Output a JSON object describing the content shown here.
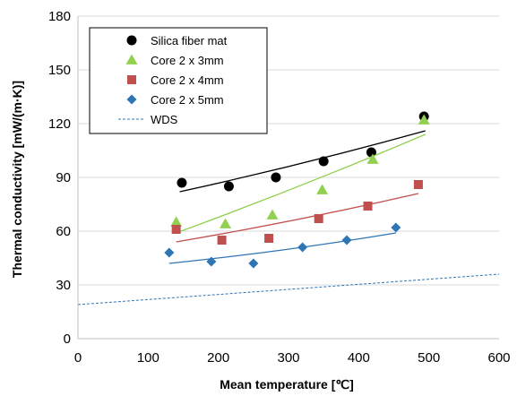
{
  "chart_data": {
    "type": "scatter",
    "title": "",
    "xlabel": "Mean temperature [℃]",
    "ylabel": "Thermal conductivity [mW/(m·K)]",
    "xlim": [
      0,
      600
    ],
    "ylim": [
      0,
      180
    ],
    "xticks": [
      "0",
      "100",
      "200",
      "300",
      "400",
      "500",
      "600"
    ],
    "yticks": [
      "0",
      "30",
      "60",
      "90",
      "120",
      "150",
      "180"
    ],
    "grid": "horizontal",
    "legend_position": "top-left",
    "series": [
      {
        "name": "Silica fiber mat",
        "marker": "circle",
        "color": "#000000",
        "points": [
          [
            148,
            87
          ],
          [
            215,
            85
          ],
          [
            282,
            90
          ],
          [
            350,
            99
          ],
          [
            418,
            104
          ],
          [
            493,
            124
          ]
        ],
        "trend": [
          [
            145,
            82
          ],
          [
            495,
            116
          ]
        ]
      },
      {
        "name": "Core 2 x 3mm",
        "marker": "triangle",
        "color": "#92d050",
        "points": [
          [
            140,
            65
          ],
          [
            210,
            64
          ],
          [
            277,
            69
          ],
          [
            348,
            83
          ],
          [
            420,
            100
          ],
          [
            493,
            122
          ]
        ],
        "trend": [
          [
            140,
            59
          ],
          [
            495,
            114
          ]
        ]
      },
      {
        "name": "Core 2 x 4mm",
        "marker": "square",
        "color": "#c0504d",
        "points": [
          [
            140,
            61
          ],
          [
            205,
            55
          ],
          [
            272,
            56
          ],
          [
            343,
            67
          ],
          [
            413,
            74
          ],
          [
            485,
            86
          ]
        ],
        "trend": [
          [
            140,
            54
          ],
          [
            485,
            81
          ]
        ]
      },
      {
        "name": "Core 2 x 5mm",
        "marker": "diamond",
        "color": "#2e75b6",
        "points": [
          [
            130,
            48
          ],
          [
            190,
            43
          ],
          [
            250,
            42
          ],
          [
            320,
            51
          ],
          [
            383,
            55
          ],
          [
            453,
            62
          ]
        ],
        "trend": [
          [
            130,
            42
          ],
          [
            453,
            59
          ]
        ]
      },
      {
        "name": "WDS",
        "marker": "dashed-line",
        "color": "#2e75b6",
        "line": [
          [
            0,
            19
          ],
          [
            600,
            36
          ]
        ]
      }
    ]
  }
}
